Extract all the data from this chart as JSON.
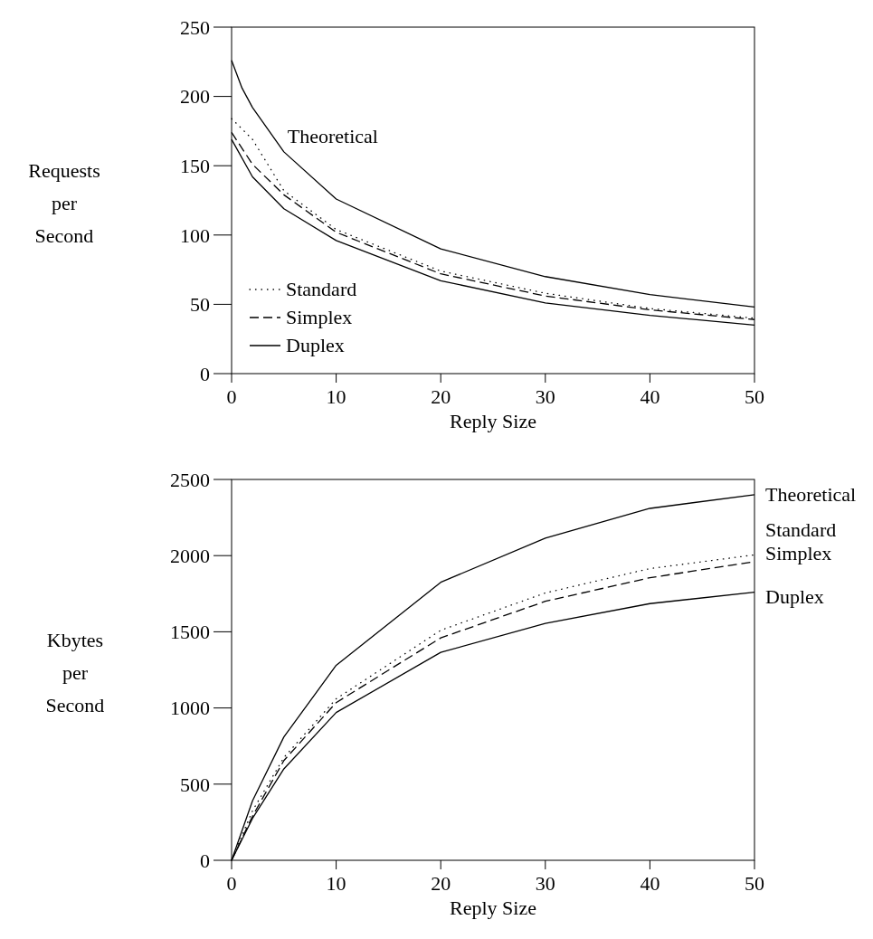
{
  "chart_data": [
    {
      "type": "line",
      "legend": "bottom left",
      "xlabel": "Reply Size",
      "ylabel": "Requests per Second",
      "xlim": [
        0,
        50
      ],
      "xticks": [
        0,
        10,
        20,
        30,
        40,
        50
      ],
      "ylim": [
        0,
        250
      ],
      "yticks": [
        0,
        50,
        100,
        150,
        200,
        250
      ],
      "series": [
        {
          "name": "Theoretical",
          "color": "#000000",
          "line_style": "solid",
          "x": [
            0,
            1,
            2,
            5,
            10,
            20,
            30,
            40,
            50
          ],
          "values": [
            226,
            206,
            192,
            160,
            126,
            90,
            70,
            57,
            48
          ]
        },
        {
          "name": "Standard",
          "color": "#000000",
          "line_style": "dotted",
          "x": [
            0,
            2,
            5,
            10,
            20,
            30,
            40,
            50
          ],
          "values": [
            184,
            169,
            132,
            104,
            74,
            58,
            47,
            40
          ]
        },
        {
          "name": "Simplex",
          "color": "#000000",
          "line_style": "dashed",
          "x": [
            0,
            2,
            5,
            10,
            20,
            30,
            40,
            50
          ],
          "values": [
            174,
            151,
            129,
            102,
            72,
            56,
            46,
            39
          ]
        },
        {
          "name": "Duplex",
          "color": "#000000",
          "line_style": "solid",
          "x": [
            0,
            2,
            5,
            10,
            20,
            30,
            40,
            50
          ],
          "values": [
            169,
            142,
            119,
            96,
            67,
            51,
            42,
            35
          ]
        }
      ]
    },
    {
      "type": "line",
      "xlabel": "Reply Size",
      "ylabel": "Kbytes per Second",
      "xlim": [
        0,
        50
      ],
      "xticks": [
        0,
        10,
        20,
        30,
        40,
        50
      ],
      "ylim": [
        0,
        2500
      ],
      "yticks": [
        0,
        500,
        1000,
        1500,
        2000,
        2500
      ],
      "series": [
        {
          "name": "Theoretical",
          "color": "#000000",
          "line_style": "solid",
          "x": [
            0,
            2,
            5,
            10,
            20,
            30,
            40,
            50
          ],
          "values": [
            0,
            390,
            810,
            1280,
            1825,
            2115,
            2310,
            2400
          ]
        },
        {
          "name": "Standard",
          "color": "#000000",
          "line_style": "dotted",
          "x": [
            0,
            2,
            5,
            10,
            20,
            30,
            40,
            50
          ],
          "values": [
            0,
            325,
            675,
            1060,
            1510,
            1755,
            1915,
            2005
          ]
        },
        {
          "name": "Simplex",
          "color": "#000000",
          "line_style": "dashed",
          "x": [
            0,
            2,
            5,
            10,
            20,
            30,
            40,
            50
          ],
          "values": [
            0,
            290,
            655,
            1035,
            1460,
            1700,
            1855,
            1960
          ]
        },
        {
          "name": "Duplex",
          "color": "#000000",
          "line_style": "solid",
          "x": [
            0,
            2,
            5,
            10,
            20,
            30,
            40,
            50
          ],
          "values": [
            0,
            275,
            600,
            970,
            1365,
            1555,
            1685,
            1760
          ]
        }
      ]
    }
  ]
}
